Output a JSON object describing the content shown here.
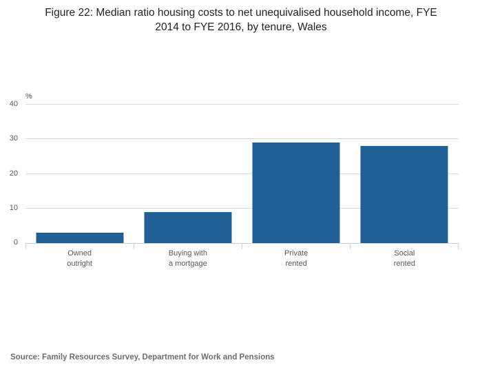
{
  "title": "Figure 22: Median ratio housing costs to net unequivalised household income, FYE 2014 to FYE 2016, by tenure, Wales",
  "source": "Source: Family Resources Survey, Department for Work and Pensions",
  "chart_data": {
    "type": "bar",
    "title": "Figure 22: Median ratio housing costs to net unequivalised household income, FYE 2014 to FYE 2016, by tenure, Wales",
    "unit_label": "%",
    "categories": [
      "Owned outright",
      "Buying with a mortgage",
      "Private rented",
      "Social rented"
    ],
    "category_lines": [
      [
        "Owned",
        "outright"
      ],
      [
        "Buying with",
        "a mortgage"
      ],
      [
        "Private",
        "rented"
      ],
      [
        "Social",
        "rented"
      ]
    ],
    "values": [
      3,
      9,
      29,
      28
    ],
    "xlabel": "",
    "ylabel": "%",
    "ylim": [
      0,
      40
    ],
    "yticks": [
      "0",
      "10",
      "20",
      "30",
      "40"
    ],
    "grid": true,
    "legend": false,
    "bar_color": "#206095"
  }
}
